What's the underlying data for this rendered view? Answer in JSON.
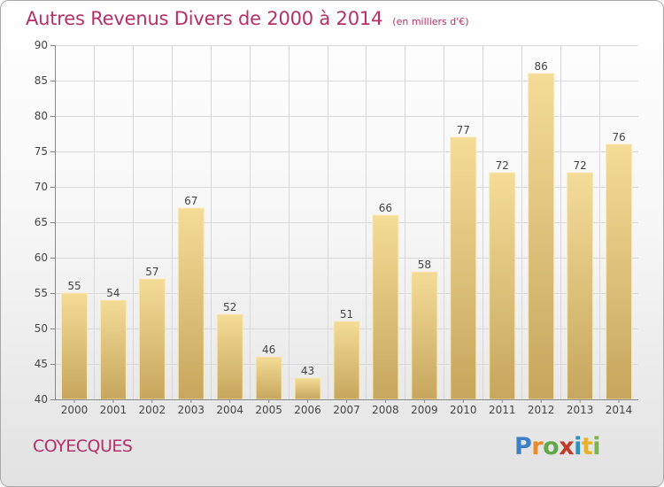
{
  "header": {
    "title": "Autres Revenus Divers de 2000 à 2014",
    "subtitle": "(en milliers d'€)"
  },
  "footer": {
    "city": "COYECQUES",
    "logo_letters": [
      "P",
      "r",
      "o",
      "x",
      "i",
      "t",
      "i"
    ]
  },
  "colors": {
    "title": "#b5306a",
    "bar_top": "#f4dc97",
    "bar_bottom": "#c7a65d",
    "grid": "#d9d9d9",
    "axis": "#888888"
  },
  "chart_data": {
    "type": "bar",
    "categories": [
      "2000",
      "2001",
      "2002",
      "2003",
      "2004",
      "2005",
      "2006",
      "2007",
      "2008",
      "2009",
      "2010",
      "2011",
      "2012",
      "2013",
      "2014"
    ],
    "values": [
      55,
      54,
      57,
      67,
      52,
      46,
      43,
      51,
      66,
      58,
      77,
      72,
      86,
      72,
      76
    ],
    "data_labels": [
      "55",
      "54",
      "57",
      "67",
      "52",
      "46",
      "43",
      "51",
      "66",
      "58",
      "77",
      "72",
      "86",
      "72",
      "76"
    ],
    "ylim": [
      40,
      90
    ],
    "yticks": [
      40,
      45,
      50,
      55,
      60,
      65,
      70,
      75,
      80,
      85,
      90
    ],
    "grid": true,
    "xlabel": "",
    "ylabel": ""
  }
}
